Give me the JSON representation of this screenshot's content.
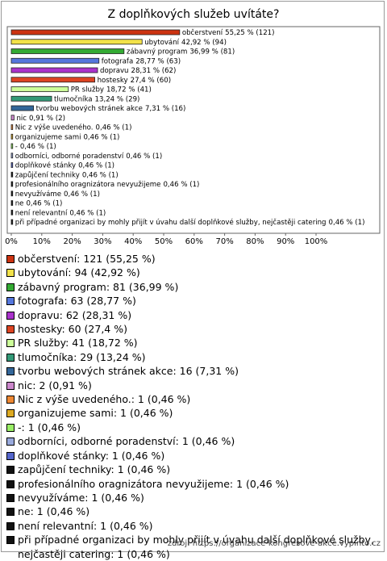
{
  "chart_data": {
    "type": "bar",
    "orientation": "horizontal",
    "title": "Z doplňkových služeb uvítáte?",
    "categories": [
      "občerstvení",
      "ubytování",
      "zábavný program",
      "fotografa",
      "dopravu",
      "hostesky",
      "PR služby",
      "tlumočníka",
      "tvorbu webových stránek akce",
      "nic",
      "Nic z výše uvedeného.",
      "organizujeme sami",
      "-",
      "odborníci, odborné poradenství",
      "doplňkové stánky",
      "zapůjčení techniky",
      "profesionálního oragnizátora nevyužijeme",
      "nevyužíváme",
      "ne",
      "není relevantní",
      "při případné organizaci by mohly přijít v úvahu další doplňkové služby, nejčastěji catering"
    ],
    "values": [
      55.25,
      42.92,
      36.99,
      28.77,
      28.31,
      27.4,
      18.72,
      13.24,
      7.31,
      0.91,
      0.46,
      0.46,
      0.46,
      0.46,
      0.46,
      0.46,
      0.46,
      0.46,
      0.46,
      0.46,
      0.46
    ],
    "value_labels": [
      "55,25 % (121)",
      "42,92 % (94)",
      "36,99 % (81)",
      "28,77 % (63)",
      "28,31 % (62)",
      "27,4 % (60)",
      "18,72 % (41)",
      "13,24 % (29)",
      "7,31 % (16)",
      "0,91 % (2)",
      "0,46 % (1)",
      "0,46 % (1)",
      "0,46 % (1)",
      "0,46 % (1)",
      "0,46 % (1)",
      "0,46 % (1)",
      "0,46 % (1)",
      "0,46 % (1)",
      "0,46 % (1)",
      "0,46 % (1)",
      "0,46 % (1)"
    ],
    "colors": [
      "#cc3311",
      "#f2e24a",
      "#33aa33",
      "#5577dd",
      "#aa33cc",
      "#dd4422",
      "#ccff99",
      "#339977",
      "#336699",
      "#cc88cc",
      "#ee8833",
      "#ddaa22",
      "#99ee66",
      "#99aadd",
      "#5566cc",
      "#111111",
      "#111111",
      "#111111",
      "#111111",
      "#111111",
      "#111111"
    ],
    "legend": [
      "občerstvení: 121 (55,25 %)",
      "ubytování: 94 (42,92 %)",
      "zábavný program: 81 (36,99 %)",
      "fotografa: 63 (28,77 %)",
      "dopravu: 62 (28,31 %)",
      "hostesky: 60 (27,4 %)",
      "PR služby: 41 (18,72 %)",
      "tlumočníka: 29 (13,24 %)",
      "tvorbu webových stránek akce: 16 (7,31 %)",
      "nic: 2 (0,91 %)",
      "Nic z výše uvedeného.: 1 (0,46 %)",
      "organizujeme sami: 1 (0,46 %)",
      "-: 1 (0,46 %)",
      "odborníci, odborné poradenství: 1 (0,46 %)",
      "doplňkové stánky: 1 (0,46 %)",
      "zapůjčení techniky: 1 (0,46 %)",
      "profesionálního oragnizátora nevyužijeme: 1 (0,46 %)",
      "nevyužíváme: 1 (0,46 %)",
      "ne: 1 (0,46 %)",
      "není relevantní: 1 (0,46 %)",
      "při případné organizaci by mohly přijít v úvahu další doplňkové služby, nejčastěji catering: 1 (0,46 %)"
    ],
    "xlim": [
      0,
      100
    ],
    "xticks": [
      {
        "value": 0,
        "label": "0%"
      },
      {
        "value": 10,
        "label": "10%"
      },
      {
        "value": 20,
        "label": "20%"
      },
      {
        "value": 30,
        "label": "30%"
      },
      {
        "value": 40,
        "label": "40%"
      },
      {
        "value": 50,
        "label": "50%"
      },
      {
        "value": 60,
        "label": "60%"
      },
      {
        "value": 70,
        "label": "70%"
      },
      {
        "value": 80,
        "label": "80%"
      },
      {
        "value": 90,
        "label": "90%"
      },
      {
        "value": 100,
        "label": "100%"
      }
    ],
    "source": "zdroj: https://organizace-kongresove-akce.vyplnto.cz"
  }
}
